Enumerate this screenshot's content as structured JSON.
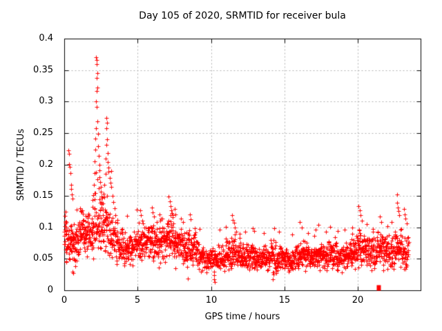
{
  "window": {
    "background": "#ffffff"
  },
  "colors": {
    "marker": "#ff0000",
    "grid": "#b0b0b0",
    "axis": "#000000",
    "text": "#000000"
  },
  "chart_data": {
    "type": "scatter",
    "title": "Day 105 of 2020, SRMTID for receiver bula",
    "xlabel": "GPS time / hours",
    "ylabel": "SRMTID / TECUs",
    "xlim": [
      0,
      24.26
    ],
    "ylim": [
      0,
      0.4
    ],
    "xticks": [
      0,
      5,
      10,
      15,
      20
    ],
    "xtick_labels": [
      "0",
      "5",
      "10",
      "15",
      "20"
    ],
    "yticks": [
      0,
      0.05,
      0.1,
      0.15,
      0.2,
      0.25,
      0.3,
      0.35,
      0.4
    ],
    "ytick_labels": [
      "0",
      "0.05",
      "0.1",
      "0.15",
      "0.2",
      "0.25",
      "0.3",
      "0.35",
      "0.4"
    ],
    "grid": true,
    "legend": "none",
    "marker": {
      "shape": "plus",
      "size": 7,
      "color": "#ff0000"
    },
    "seed": 987654321,
    "band_bins": [
      [
        0.0,
        0.5,
        48,
        0.082,
        0.024
      ],
      [
        0.5,
        1.0,
        48,
        0.075,
        0.022
      ],
      [
        1.0,
        1.5,
        50,
        0.088,
        0.024
      ],
      [
        1.5,
        2.0,
        46,
        0.092,
        0.026
      ],
      [
        2.0,
        2.5,
        44,
        0.105,
        0.035
      ],
      [
        2.5,
        3.0,
        44,
        0.105,
        0.035
      ],
      [
        3.0,
        3.5,
        44,
        0.085,
        0.027
      ],
      [
        3.5,
        4.0,
        44,
        0.072,
        0.022
      ],
      [
        4.0,
        4.5,
        44,
        0.066,
        0.02
      ],
      [
        4.5,
        5.0,
        44,
        0.071,
        0.023
      ],
      [
        5.0,
        5.5,
        46,
        0.075,
        0.025
      ],
      [
        5.5,
        6.0,
        46,
        0.079,
        0.026
      ],
      [
        6.0,
        6.5,
        46,
        0.075,
        0.025
      ],
      [
        6.5,
        7.0,
        46,
        0.079,
        0.027
      ],
      [
        7.0,
        7.5,
        48,
        0.084,
        0.028
      ],
      [
        7.5,
        8.0,
        46,
        0.075,
        0.026
      ],
      [
        8.0,
        8.5,
        46,
        0.066,
        0.022
      ],
      [
        8.5,
        9.0,
        46,
        0.07,
        0.024
      ],
      [
        9.0,
        9.5,
        42,
        0.056,
        0.017
      ],
      [
        9.5,
        10.0,
        40,
        0.05,
        0.015
      ],
      [
        10.0,
        10.5,
        40,
        0.049,
        0.015
      ],
      [
        10.5,
        11.0,
        42,
        0.053,
        0.017
      ],
      [
        11.0,
        11.5,
        48,
        0.06,
        0.021
      ],
      [
        11.5,
        12.0,
        48,
        0.064,
        0.022
      ],
      [
        12.0,
        12.5,
        46,
        0.053,
        0.017
      ],
      [
        12.5,
        13.0,
        46,
        0.056,
        0.018
      ],
      [
        13.0,
        13.5,
        46,
        0.05,
        0.015
      ],
      [
        13.5,
        14.0,
        46,
        0.051,
        0.016
      ],
      [
        14.0,
        14.5,
        46,
        0.054,
        0.018
      ],
      [
        14.5,
        15.0,
        44,
        0.051,
        0.016
      ],
      [
        15.0,
        15.5,
        44,
        0.048,
        0.014
      ],
      [
        15.5,
        16.0,
        44,
        0.052,
        0.017
      ],
      [
        16.0,
        16.5,
        46,
        0.056,
        0.019
      ],
      [
        16.5,
        17.0,
        44,
        0.052,
        0.017
      ],
      [
        17.0,
        17.5,
        46,
        0.056,
        0.018
      ],
      [
        17.5,
        18.0,
        44,
        0.054,
        0.017
      ],
      [
        18.0,
        18.5,
        46,
        0.056,
        0.018
      ],
      [
        18.5,
        19.0,
        44,
        0.052,
        0.017
      ],
      [
        19.0,
        19.5,
        44,
        0.056,
        0.018
      ],
      [
        19.5,
        20.0,
        46,
        0.06,
        0.02
      ],
      [
        20.0,
        20.5,
        46,
        0.067,
        0.023
      ],
      [
        20.5,
        21.0,
        46,
        0.061,
        0.02
      ],
      [
        21.0,
        21.5,
        46,
        0.064,
        0.022
      ],
      [
        21.5,
        22.0,
        46,
        0.067,
        0.023
      ],
      [
        22.0,
        22.5,
        46,
        0.062,
        0.021
      ],
      [
        22.5,
        23.0,
        46,
        0.069,
        0.025
      ],
      [
        23.0,
        23.45,
        40,
        0.06,
        0.023
      ]
    ],
    "feature_points": [
      [
        0.05,
        0.118
      ],
      [
        0.08,
        0.108
      ],
      [
        0.1,
        0.125
      ],
      [
        0.12,
        0.046
      ],
      [
        0.15,
        0.045
      ],
      [
        0.3,
        0.222
      ],
      [
        0.32,
        0.217
      ],
      [
        0.35,
        0.201
      ],
      [
        0.38,
        0.196
      ],
      [
        0.42,
        0.186
      ],
      [
        0.45,
        0.168
      ],
      [
        0.48,
        0.161
      ],
      [
        0.52,
        0.152
      ],
      [
        0.55,
        0.146
      ],
      [
        0.55,
        0.03
      ],
      [
        0.6,
        0.027
      ],
      [
        0.75,
        0.038
      ],
      [
        0.85,
        0.128
      ],
      [
        1.1,
        0.13
      ],
      [
        1.15,
        0.126
      ],
      [
        1.25,
        0.122
      ],
      [
        1.45,
        0.118
      ],
      [
        2.18,
        0.37
      ],
      [
        2.22,
        0.366
      ],
      [
        2.2,
        0.359
      ],
      [
        2.24,
        0.345
      ],
      [
        2.19,
        0.338
      ],
      [
        2.26,
        0.322
      ],
      [
        2.21,
        0.317
      ],
      [
        2.17,
        0.3
      ],
      [
        2.23,
        0.291
      ],
      [
        2.28,
        0.268
      ],
      [
        2.15,
        0.257
      ],
      [
        2.3,
        0.249
      ],
      [
        2.12,
        0.241
      ],
      [
        2.32,
        0.229
      ],
      [
        2.1,
        0.224
      ],
      [
        2.35,
        0.214
      ],
      [
        2.08,
        0.205
      ],
      [
        2.38,
        0.199
      ],
      [
        2.4,
        0.191
      ],
      [
        2.05,
        0.186
      ],
      [
        2.42,
        0.18
      ],
      [
        2.45,
        0.172
      ],
      [
        2.02,
        0.168
      ],
      [
        2.48,
        0.164
      ],
      [
        2.5,
        0.157
      ],
      [
        1.98,
        0.151
      ],
      [
        2.55,
        0.149
      ],
      [
        1.95,
        0.144
      ],
      [
        2.6,
        0.147
      ],
      [
        2.14,
        0.187
      ],
      [
        2.25,
        0.176
      ],
      [
        2.33,
        0.162
      ],
      [
        2.07,
        0.155
      ],
      [
        2.44,
        0.139
      ],
      [
        1.92,
        0.133
      ],
      [
        2.52,
        0.131
      ],
      [
        2.62,
        0.128
      ],
      [
        2.65,
        0.138
      ],
      [
        2.7,
        0.153
      ],
      [
        2.75,
        0.168
      ],
      [
        2.8,
        0.185
      ],
      [
        2.86,
        0.274
      ],
      [
        2.9,
        0.266
      ],
      [
        2.88,
        0.257
      ],
      [
        2.92,
        0.24
      ],
      [
        2.85,
        0.231
      ],
      [
        2.94,
        0.218
      ],
      [
        2.83,
        0.209
      ],
      [
        2.96,
        0.204
      ],
      [
        3.0,
        0.195
      ],
      [
        3.03,
        0.188
      ],
      [
        3.08,
        0.179
      ],
      [
        3.13,
        0.171
      ],
      [
        3.18,
        0.19
      ],
      [
        3.22,
        0.164
      ],
      [
        3.28,
        0.15
      ],
      [
        3.35,
        0.14
      ],
      [
        3.42,
        0.13
      ],
      [
        3.5,
        0.12
      ],
      [
        3.6,
        0.112
      ],
      [
        4.3,
        0.118
      ],
      [
        4.95,
        0.128
      ],
      [
        5.15,
        0.127
      ],
      [
        5.22,
        0.119
      ],
      [
        5.3,
        0.111
      ],
      [
        5.95,
        0.131
      ],
      [
        6.02,
        0.124
      ],
      [
        6.1,
        0.117
      ],
      [
        6.3,
        0.108
      ],
      [
        6.5,
        0.121
      ],
      [
        6.56,
        0.114
      ],
      [
        7.12,
        0.149
      ],
      [
        7.18,
        0.141
      ],
      [
        7.24,
        0.134
      ],
      [
        7.3,
        0.127
      ],
      [
        7.36,
        0.119
      ],
      [
        7.52,
        0.129
      ],
      [
        7.58,
        0.121
      ],
      [
        8.1,
        0.108
      ],
      [
        8.4,
        0.019
      ],
      [
        8.55,
        0.121
      ],
      [
        8.62,
        0.113
      ],
      [
        9.2,
        0.098
      ],
      [
        10.18,
        0.03
      ],
      [
        10.2,
        0.024
      ],
      [
        10.22,
        0.018
      ],
      [
        10.25,
        0.013
      ],
      [
        10.6,
        0.096
      ],
      [
        11.0,
        0.101
      ],
      [
        11.42,
        0.119
      ],
      [
        11.48,
        0.112
      ],
      [
        11.55,
        0.107
      ],
      [
        11.62,
        0.1
      ],
      [
        12.3,
        0.093
      ],
      [
        12.85,
        0.099
      ],
      [
        12.95,
        0.094
      ],
      [
        13.6,
        0.091
      ],
      [
        14.2,
        0.018
      ],
      [
        14.28,
        0.099
      ],
      [
        14.6,
        0.093
      ],
      [
        15.5,
        0.089
      ],
      [
        16.05,
        0.109
      ],
      [
        16.15,
        0.1
      ],
      [
        16.6,
        0.091
      ],
      [
        17.1,
        0.096
      ],
      [
        17.32,
        0.104
      ],
      [
        17.8,
        0.093
      ],
      [
        18.12,
        0.101
      ],
      [
        18.6,
        0.094
      ],
      [
        19.1,
        0.096
      ],
      [
        19.6,
        0.1
      ],
      [
        20.05,
        0.134
      ],
      [
        20.12,
        0.127
      ],
      [
        20.18,
        0.119
      ],
      [
        20.25,
        0.111
      ],
      [
        20.6,
        0.105
      ],
      [
        21.0,
        0.098
      ],
      [
        21.5,
        0.117
      ],
      [
        21.56,
        0.109
      ],
      [
        22.0,
        0.102
      ],
      [
        22.3,
        0.108
      ],
      [
        22.64,
        0.152
      ],
      [
        22.68,
        0.139
      ],
      [
        22.72,
        0.132
      ],
      [
        22.76,
        0.126
      ],
      [
        22.8,
        0.119
      ],
      [
        23.12,
        0.129
      ],
      [
        23.18,
        0.121
      ],
      [
        23.24,
        0.114
      ],
      [
        23.3,
        0.106
      ]
    ],
    "special_points": [
      {
        "x": 21.4,
        "y": 0.004,
        "marker": "square"
      }
    ]
  }
}
